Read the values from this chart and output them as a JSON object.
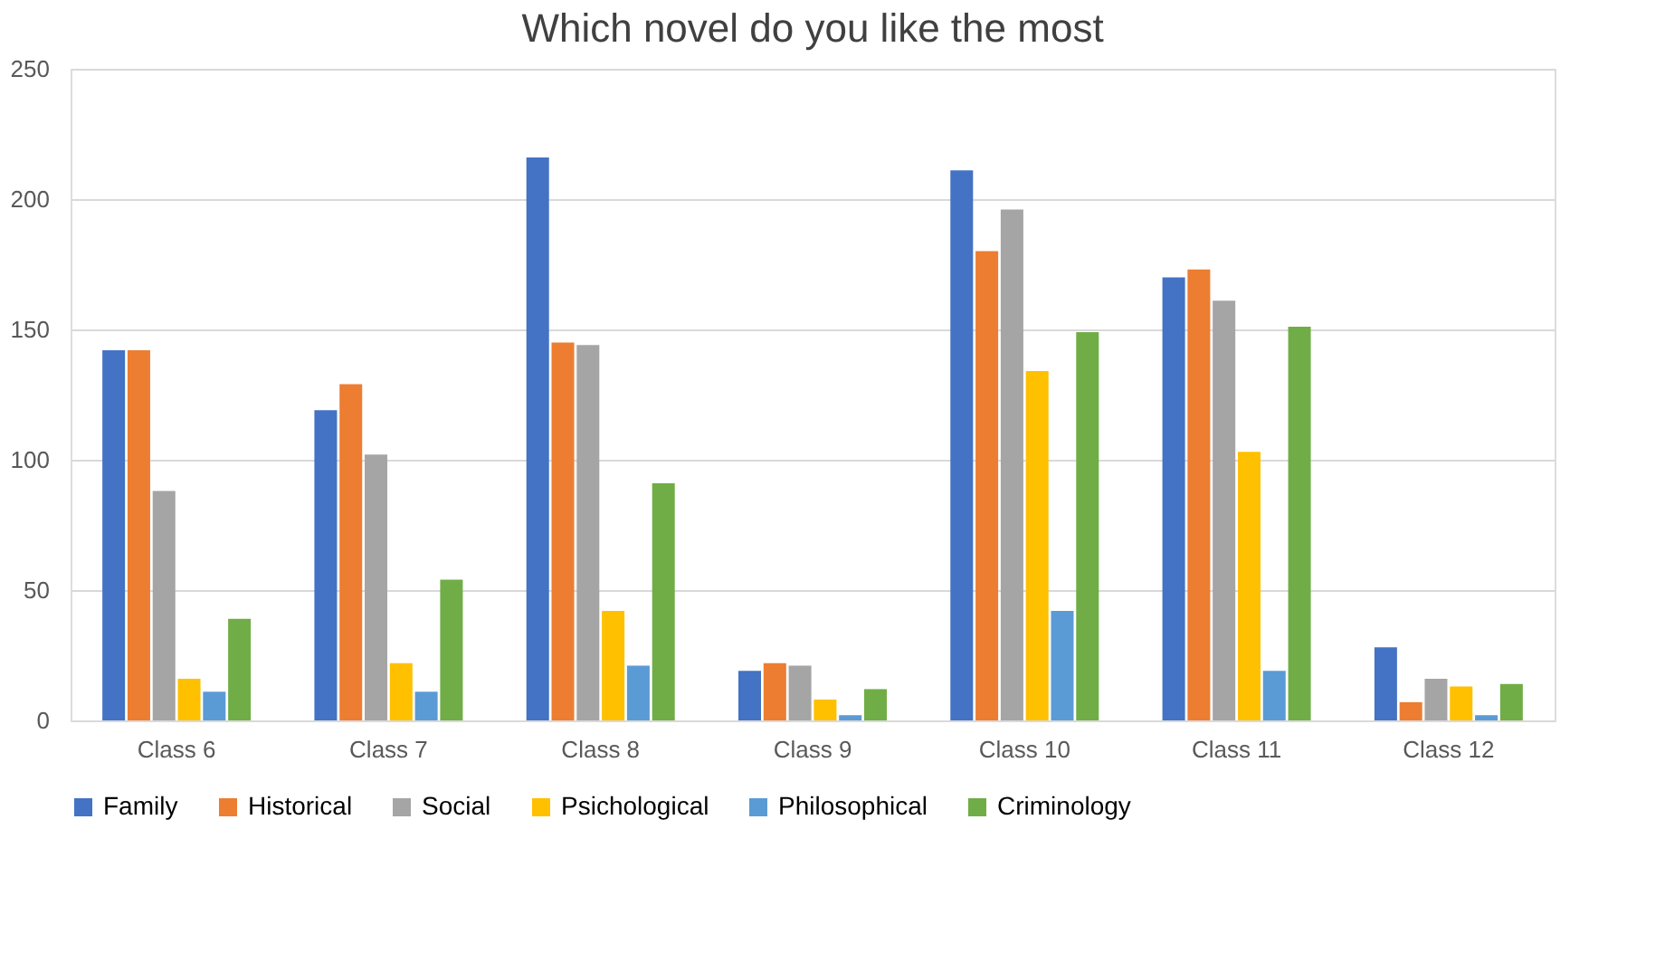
{
  "chart_data": {
    "type": "bar",
    "title": "Which novel do you like the most",
    "categories": [
      "Class 6",
      "Class 7",
      "Class 8",
      "Class 9",
      "Class 10",
      "Class 11",
      "Class 12"
    ],
    "series": [
      {
        "name": "Family",
        "color": "#4472c4",
        "values": [
          142,
          119,
          216,
          19,
          211,
          170,
          28
        ]
      },
      {
        "name": "Historical",
        "color": "#ed7d31",
        "values": [
          142,
          129,
          145,
          22,
          180,
          173,
          7
        ]
      },
      {
        "name": "Social",
        "color": "#a5a5a5",
        "values": [
          88,
          102,
          144,
          21,
          196,
          161,
          16
        ]
      },
      {
        "name": "Psichological",
        "color": "#ffc000",
        "values": [
          16,
          22,
          42,
          8,
          134,
          103,
          13
        ]
      },
      {
        "name": "Philosophical",
        "color": "#5b9bd5",
        "values": [
          11,
          11,
          21,
          2,
          42,
          19,
          2
        ]
      },
      {
        "name": "Criminology",
        "color": "#70ad47",
        "values": [
          39,
          54,
          91,
          12,
          149,
          151,
          14
        ]
      }
    ],
    "ylim": [
      0,
      250
    ],
    "yticks": [
      0,
      50,
      100,
      150,
      200,
      250
    ],
    "grid": "y",
    "legend": "bottom"
  }
}
